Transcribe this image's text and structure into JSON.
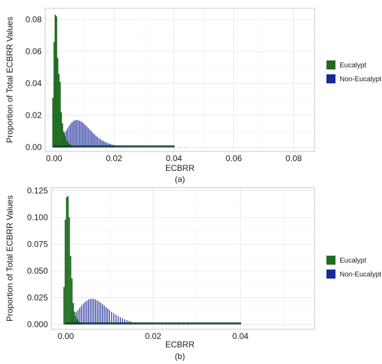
{
  "colors": {
    "eucalypt": "#1f6b1f",
    "non_eucalypt": "#1a2a9a",
    "overlap": "#0f3b3b"
  },
  "chart_data": [
    {
      "panel": "(a)",
      "type": "bar",
      "xlabel": "ECBRR",
      "ylabel": "Proportion of Total ECBRR Values",
      "xlim": [
        -0.003,
        0.087
      ],
      "ylim": [
        -0.0025,
        0.087
      ],
      "x_ticks": [
        "0.00",
        "0.02",
        "0.04",
        "0.06",
        "0.08"
      ],
      "y_ticks": [
        "0.00",
        "0.02",
        "0.04",
        "0.06",
        "0.08"
      ],
      "grid": true,
      "legend_position": "right",
      "series": [
        {
          "name": "Eucalypt",
          "color": "#1f6b1f",
          "x": [
            -0.0004,
            0,
            0.0004,
            0.0008,
            0.0012,
            0.0016,
            0.002,
            0.0024,
            0.0028,
            0.0032,
            0.0036,
            0.004,
            0.0044,
            0.0048,
            0.0052,
            0.0056,
            0.006,
            0.0064
          ],
          "values": [
            0.031,
            0.066,
            0.083,
            0.082,
            0.056,
            0.046,
            0.041,
            0.022,
            0.015,
            0.01,
            0.007,
            0.005,
            0.004,
            0.003,
            0.002,
            0.0015,
            0.001,
            0.0005
          ]
        },
        {
          "name": "Non-Eucalypt",
          "color": "#1a2a9a",
          "x": [
            0,
            0.0005,
            0.001,
            0.0015,
            0.002,
            0.0025,
            0.003,
            0.0035,
            0.004,
            0.0045,
            0.005,
            0.0055,
            0.006,
            0.0065,
            0.007,
            0.0075,
            0.008,
            0.0085,
            0.009,
            0.0095,
            0.01,
            0.0105,
            0.011,
            0.0115,
            0.012,
            0.0125,
            0.013,
            0.0135,
            0.014,
            0.0145,
            0.015,
            0.0155,
            0.016,
            0.0165,
            0.017,
            0.0175,
            0.018,
            0.0185,
            0.019,
            0.0195,
            0.02,
            0.021,
            0.022,
            0.023,
            0.024,
            0.025,
            0.026,
            0.027,
            0.028,
            0.029,
            0.03,
            0.032,
            0.034,
            0.036,
            0.038,
            0.04,
            0.042,
            0.044
          ],
          "values": [
            0.0005,
            0.001,
            0.002,
            0.003,
            0.0045,
            0.006,
            0.0075,
            0.009,
            0.0105,
            0.012,
            0.0135,
            0.0148,
            0.0158,
            0.0166,
            0.017,
            0.0171,
            0.017,
            0.0167,
            0.0162,
            0.0156,
            0.0148,
            0.0139,
            0.013,
            0.012,
            0.011,
            0.01,
            0.0091,
            0.0082,
            0.0073,
            0.0065,
            0.0058,
            0.0051,
            0.0045,
            0.004,
            0.0035,
            0.003,
            0.0026,
            0.0023,
            0.002,
            0.0017,
            0.0015,
            0.0012,
            0.001,
            0.0008,
            0.0006,
            0.0005,
            0.0004,
            0.0003,
            0.00025,
            0.0002,
            0.00015,
            0.0001,
            8e-05,
            6e-05,
            5e-05,
            4e-05,
            3e-05,
            2e-05
          ]
        }
      ]
    },
    {
      "panel": "(b)",
      "type": "bar",
      "xlabel": "ECBRR",
      "ylabel": "Proportion of Total ECBRR Values",
      "xlim": [
        -0.0033,
        0.057
      ],
      "ylim": [
        -0.0045,
        0.128
      ],
      "x_ticks": [
        "0.00",
        "0.02",
        "0.04"
      ],
      "y_ticks": [
        "0.000",
        "0.025",
        "0.050",
        "0.075",
        "0.100",
        "0.125"
      ],
      "grid": true,
      "legend_position": "right",
      "series": [
        {
          "name": "Eucalypt",
          "color": "#1f6b1f",
          "x": [
            -0.0004,
            -0.0001,
            0.0002,
            0.0005,
            0.0008,
            0.0011,
            0.0014,
            0.0017,
            0.002,
            0.0023,
            0.0026,
            0.0029,
            0.0032,
            0.0035,
            0.0038
          ],
          "values": [
            0.035,
            0.098,
            0.119,
            0.12,
            0.1,
            0.064,
            0.043,
            0.02,
            0.012,
            0.008,
            0.005,
            0.003,
            0.002,
            0.0015,
            0.001
          ]
        },
        {
          "name": "Non-Eucalypt",
          "color": "#1a2a9a",
          "x": [
            0,
            0.0004,
            0.0008,
            0.0012,
            0.0016,
            0.002,
            0.0024,
            0.0028,
            0.0032,
            0.0036,
            0.004,
            0.0044,
            0.0048,
            0.0052,
            0.0056,
            0.006,
            0.0064,
            0.0068,
            0.0072,
            0.0076,
            0.008,
            0.0084,
            0.0088,
            0.0092,
            0.0096,
            0.01,
            0.0105,
            0.011,
            0.0115,
            0.012,
            0.0125,
            0.013,
            0.0135,
            0.014,
            0.0145,
            0.015,
            0.016,
            0.017,
            0.018,
            0.019,
            0.02,
            0.021,
            0.022,
            0.023,
            0.024,
            0.025,
            0.026,
            0.027,
            0.028
          ],
          "values": [
            0.001,
            0.002,
            0.0035,
            0.0055,
            0.0075,
            0.0095,
            0.0115,
            0.0135,
            0.0155,
            0.0175,
            0.0195,
            0.021,
            0.0222,
            0.0232,
            0.0238,
            0.024,
            0.0238,
            0.0233,
            0.0225,
            0.0215,
            0.0203,
            0.019,
            0.0176,
            0.0162,
            0.0148,
            0.0135,
            0.0118,
            0.0103,
            0.009,
            0.0078,
            0.0067,
            0.0057,
            0.0048,
            0.004,
            0.0033,
            0.0027,
            0.002,
            0.0014,
            0.001,
            0.0007,
            0.0005,
            0.0004,
            0.0003,
            0.0002,
            0.00015,
            0.0001,
            8e-05,
            5e-05,
            3e-05
          ]
        }
      ]
    }
  ]
}
